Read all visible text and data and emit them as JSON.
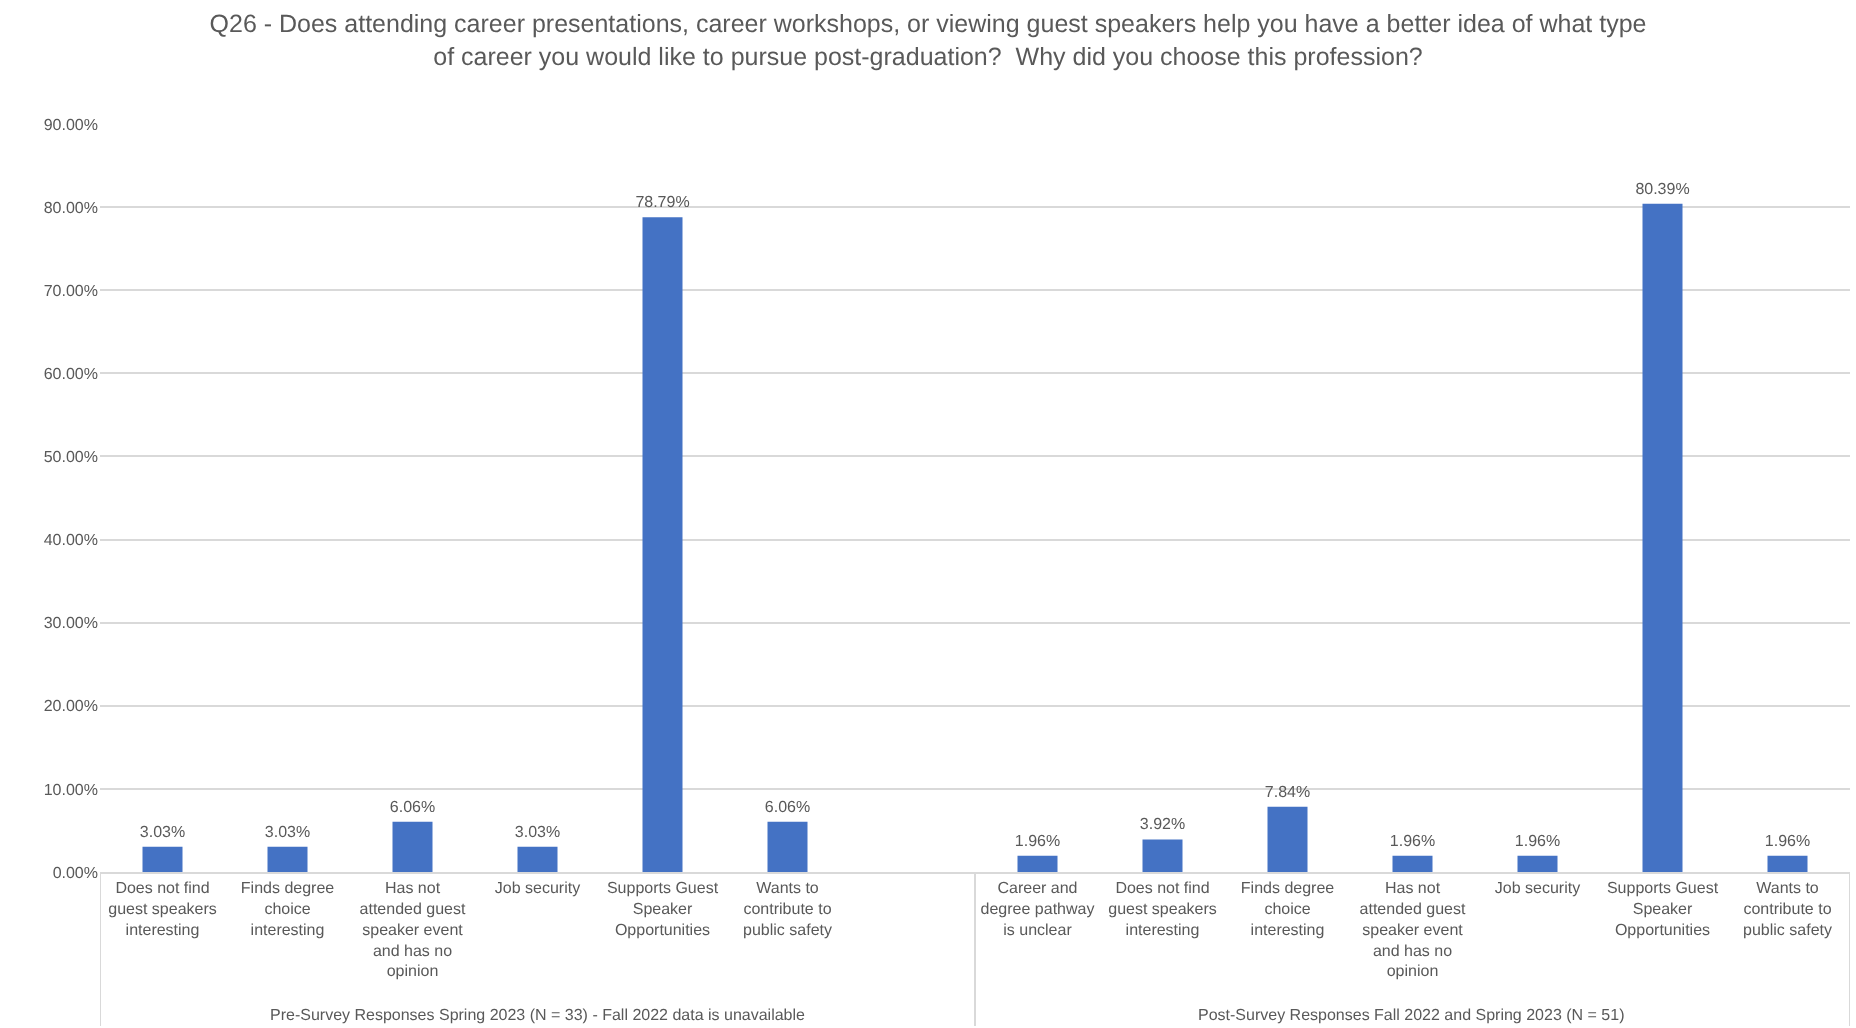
{
  "chart_data": {
    "type": "bar",
    "title": "Q26 - Does attending career presentations, career workshops, or viewing guest speakers help you have a better idea of what type of career you would like to pursue post-graduation?  Why did you choose this profession?",
    "categories": [
      "Does not find guest speakers interesting",
      "Finds degree choice interesting",
      "Has not attended guest speaker event and has no opinion",
      "Job security",
      "Supports Guest Speaker Opportunities",
      "Wants to contribute to public safety",
      null,
      "Career and degree pathway is unclear",
      "Does not find guest speakers interesting",
      "Finds degree choice interesting",
      "Has not attended guest speaker event and has no opinion",
      "Job security",
      "Supports Guest Speaker Opportunities",
      "Wants to contribute to public safety"
    ],
    "values": [
      3.03,
      3.03,
      6.06,
      3.03,
      78.79,
      6.06,
      null,
      1.96,
      3.92,
      7.84,
      1.96,
      1.96,
      80.39,
      1.96
    ],
    "value_labels": [
      "3.03%",
      "3.03%",
      "6.06%",
      "3.03%",
      "78.79%",
      "6.06%",
      null,
      "1.96%",
      "3.92%",
      "7.84%",
      "1.96%",
      "1.96%",
      "80.39%",
      "1.96%"
    ],
    "color": "#4472c4",
    "ylim": [
      0,
      90
    ],
    "yticks": [
      {
        "value": 0,
        "label": "0.00%"
      },
      {
        "value": 10,
        "label": "10.00%"
      },
      {
        "value": 20,
        "label": "20.00%"
      },
      {
        "value": 30,
        "label": "30.00%"
      },
      {
        "value": 40,
        "label": "40.00%"
      },
      {
        "value": 50,
        "label": "50.00%"
      },
      {
        "value": 60,
        "label": "60.00%"
      },
      {
        "value": 70,
        "label": "70.00%"
      },
      {
        "value": 80,
        "label": "80.00%"
      },
      {
        "value": 90,
        "label": "90.00%"
      }
    ],
    "grid": "y",
    "annotations": [
      "Pre-Survey Responses Spring 2023 (N = 33) - Fall 2022 data is unavailable",
      "Post-Survey Responses Fall 2022 and Spring 2023 (N = 51)"
    ]
  }
}
